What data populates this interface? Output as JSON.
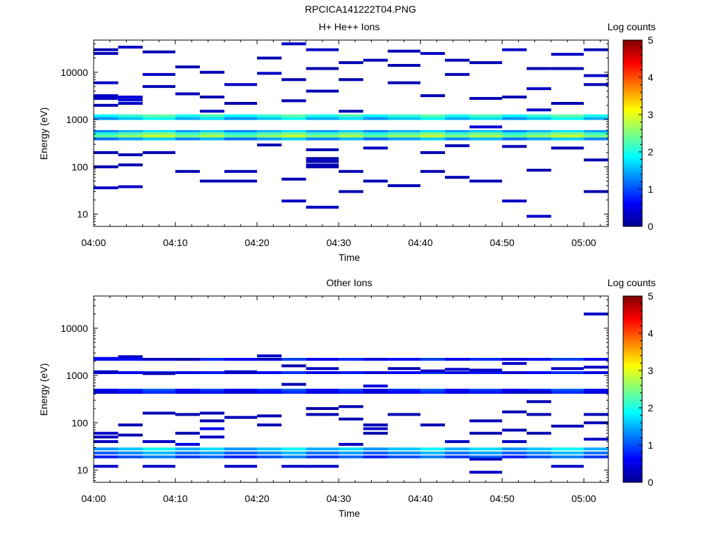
{
  "page_title": "RPCICA141222T04.PNG",
  "colors": {
    "colormap": [
      "#00008f",
      "#0000ff",
      "#00ffff",
      "#ffff00",
      "#ff0000",
      "#800000"
    ]
  },
  "chart_data": [
    {
      "type": "heatmap",
      "title": "H+ He++ Ions",
      "xlabel": "Time",
      "ylabel": "Energy (eV)",
      "colorbar_label": "Log counts",
      "colorbar_ticks": [
        "0",
        "1",
        "2",
        "3",
        "4",
        "5"
      ],
      "clim": [
        0,
        5
      ],
      "x_ticks": [
        "04:00",
        "04:10",
        "04:20",
        "04:30",
        "04:40",
        "04:50",
        "05:00"
      ],
      "y_ticks": [
        "10",
        "100",
        "1000",
        "10000"
      ],
      "y_scale": "log",
      "ylim": [
        5.5,
        48000
      ],
      "xlim": [
        "04:00",
        "05:03"
      ],
      "time_bins": [
        "04:00",
        "04:03",
        "04:06",
        "04:10",
        "04:13",
        "04:16",
        "04:20",
        "04:23",
        "04:26",
        "04:30",
        "04:33",
        "04:36",
        "04:40",
        "04:43",
        "04:46",
        "04:50",
        "04:53",
        "04:56",
        "05:00"
      ],
      "bands": [
        {
          "energy": 1200,
          "level": 2.1
        },
        {
          "energy": 1050,
          "level": 1.6
        },
        {
          "energy": 560,
          "level": 1.5
        },
        {
          "energy": 500,
          "level": 2.3
        },
        {
          "energy": 440,
          "level": 2.6
        },
        {
          "energy": 390,
          "level": 1.4
        }
      ],
      "cells": [
        {
          "t": 0,
          "e": 30000,
          "v": 0.2
        },
        {
          "t": 0,
          "e": 25000,
          "v": 0.2
        },
        {
          "t": 0,
          "e": 6000,
          "v": 0.3
        },
        {
          "t": 0,
          "e": 3200,
          "v": 0.3
        },
        {
          "t": 0,
          "e": 2800,
          "v": 0.3
        },
        {
          "t": 0,
          "e": 2000,
          "v": 0.2
        },
        {
          "t": 0,
          "e": 200,
          "v": 0.2
        },
        {
          "t": 0,
          "e": 100,
          "v": 0.2
        },
        {
          "t": 0,
          "e": 36,
          "v": 0.3
        },
        {
          "t": 1,
          "e": 34000,
          "v": 0.3
        },
        {
          "t": 1,
          "e": 3000,
          "v": 0.4
        },
        {
          "t": 1,
          "e": 2600,
          "v": 0.4
        },
        {
          "t": 1,
          "e": 2200,
          "v": 0.3
        },
        {
          "t": 1,
          "e": 180,
          "v": 0.2
        },
        {
          "t": 1,
          "e": 110,
          "v": 0.2
        },
        {
          "t": 1,
          "e": 38,
          "v": 0.3
        },
        {
          "t": 2,
          "e": 9000,
          "v": 0.3
        },
        {
          "t": 2,
          "e": 27000,
          "v": 0.2
        },
        {
          "t": 2,
          "e": 5000,
          "v": 0.2
        },
        {
          "t": 2,
          "e": 200,
          "v": 0.2
        },
        {
          "t": 3,
          "e": 13000,
          "v": 0.2
        },
        {
          "t": 3,
          "e": 3500,
          "v": 0.2
        },
        {
          "t": 3,
          "e": 80,
          "v": 0.2
        },
        {
          "t": 4,
          "e": 10000,
          "v": 0.2
        },
        {
          "t": 4,
          "e": 3000,
          "v": 0.2
        },
        {
          "t": 4,
          "e": 1500,
          "v": 0.3
        },
        {
          "t": 4,
          "e": 50,
          "v": 0.2
        },
        {
          "t": 5,
          "e": 5500,
          "v": 0.3
        },
        {
          "t": 5,
          "e": 2200,
          "v": 0.2
        },
        {
          "t": 5,
          "e": 80,
          "v": 0.2
        },
        {
          "t": 5,
          "e": 50,
          "v": 0.2
        },
        {
          "t": 6,
          "e": 9500,
          "v": 0.3
        },
        {
          "t": 6,
          "e": 20000,
          "v": 0.2
        },
        {
          "t": 6,
          "e": 290,
          "v": 0.2
        },
        {
          "t": 7,
          "e": 40000,
          "v": 0.3
        },
        {
          "t": 7,
          "e": 7000,
          "v": 0.2
        },
        {
          "t": 7,
          "e": 2500,
          "v": 0.2
        },
        {
          "t": 7,
          "e": 55,
          "v": 0.2
        },
        {
          "t": 7,
          "e": 19,
          "v": 0.3
        },
        {
          "t": 8,
          "e": 30000,
          "v": 0.3
        },
        {
          "t": 8,
          "e": 12000,
          "v": 0.2
        },
        {
          "t": 8,
          "e": 4000,
          "v": 0.2
        },
        {
          "t": 8,
          "e": 230,
          "v": 0.2
        },
        {
          "t": 8,
          "e": 150,
          "v": 0.2
        },
        {
          "t": 8,
          "e": 130,
          "v": 0.2
        },
        {
          "t": 8,
          "e": 110,
          "v": 0.2
        },
        {
          "t": 8,
          "e": 100,
          "v": 0.2
        },
        {
          "t": 8,
          "e": 14,
          "v": 0.3
        },
        {
          "t": 9,
          "e": 16000,
          "v": 0.2
        },
        {
          "t": 9,
          "e": 7000,
          "v": 0.2
        },
        {
          "t": 9,
          "e": 1500,
          "v": 0.2
        },
        {
          "t": 9,
          "e": 80,
          "v": 0.2
        },
        {
          "t": 9,
          "e": 30,
          "v": 0.2
        },
        {
          "t": 10,
          "e": 18000,
          "v": 0.2
        },
        {
          "t": 10,
          "e": 250,
          "v": 0.3
        },
        {
          "t": 10,
          "e": 50,
          "v": 0.2
        },
        {
          "t": 11,
          "e": 28000,
          "v": 0.2
        },
        {
          "t": 11,
          "e": 14000,
          "v": 0.2
        },
        {
          "t": 11,
          "e": 6000,
          "v": 0.2
        },
        {
          "t": 11,
          "e": 40,
          "v": 0.2
        },
        {
          "t": 12,
          "e": 25000,
          "v": 0.3
        },
        {
          "t": 12,
          "e": 3200,
          "v": 0.2
        },
        {
          "t": 12,
          "e": 200,
          "v": 0.2
        },
        {
          "t": 12,
          "e": 80,
          "v": 0.2
        },
        {
          "t": 13,
          "e": 18000,
          "v": 0.2
        },
        {
          "t": 13,
          "e": 9000,
          "v": 0.2
        },
        {
          "t": 13,
          "e": 280,
          "v": 0.2
        },
        {
          "t": 13,
          "e": 60,
          "v": 0.2
        },
        {
          "t": 14,
          "e": 16000,
          "v": 0.2
        },
        {
          "t": 14,
          "e": 2800,
          "v": 0.2
        },
        {
          "t": 14,
          "e": 700,
          "v": 0.4
        },
        {
          "t": 14,
          "e": 50,
          "v": 0.2
        },
        {
          "t": 15,
          "e": 30000,
          "v": 0.3
        },
        {
          "t": 15,
          "e": 3000,
          "v": 0.2
        },
        {
          "t": 15,
          "e": 270,
          "v": 0.2
        },
        {
          "t": 15,
          "e": 19,
          "v": 0.3
        },
        {
          "t": 16,
          "e": 12000,
          "v": 0.2
        },
        {
          "t": 16,
          "e": 4500,
          "v": 0.3
        },
        {
          "t": 16,
          "e": 1600,
          "v": 0.3
        },
        {
          "t": 16,
          "e": 85,
          "v": 0.2
        },
        {
          "t": 16,
          "e": 9,
          "v": 0.3
        },
        {
          "t": 17,
          "e": 24000,
          "v": 0.3
        },
        {
          "t": 17,
          "e": 12000,
          "v": 0.2
        },
        {
          "t": 17,
          "e": 2200,
          "v": 0.2
        },
        {
          "t": 17,
          "e": 250,
          "v": 0.2
        },
        {
          "t": 18,
          "e": 30000,
          "v": 0.2
        },
        {
          "t": 18,
          "e": 8500,
          "v": 0.3
        },
        {
          "t": 18,
          "e": 5500,
          "v": 0.2
        },
        {
          "t": 18,
          "e": 140,
          "v": 0.2
        },
        {
          "t": 18,
          "e": 30,
          "v": 0.2
        }
      ]
    },
    {
      "type": "heatmap",
      "title": "Other Ions",
      "xlabel": "Time",
      "ylabel": "Energy (eV)",
      "colorbar_label": "Log counts",
      "colorbar_ticks": [
        "0",
        "1",
        "2",
        "3",
        "4",
        "5"
      ],
      "clim": [
        0,
        5
      ],
      "x_ticks": [
        "04:00",
        "04:10",
        "04:20",
        "04:30",
        "04:40",
        "04:50",
        "05:00"
      ],
      "y_ticks": [
        "10",
        "100",
        "1000",
        "10000"
      ],
      "y_scale": "log",
      "ylim": [
        5.5,
        48000
      ],
      "xlim": [
        "04:00",
        "05:03"
      ],
      "time_bins": [
        "04:00",
        "04:03",
        "04:06",
        "04:10",
        "04:13",
        "04:16",
        "04:20",
        "04:23",
        "04:26",
        "04:30",
        "04:33",
        "04:36",
        "04:40",
        "04:43",
        "04:46",
        "04:50",
        "04:53",
        "04:56",
        "05:00"
      ],
      "bands": [
        {
          "energy": 2200,
          "level": 0.7
        },
        {
          "energy": 1150,
          "level": 0.6
        },
        {
          "energy": 490,
          "level": 0.8
        },
        {
          "energy": 440,
          "level": 0.6
        },
        {
          "energy": 28,
          "level": 1.6
        },
        {
          "energy": 23,
          "level": 1.3
        },
        {
          "energy": 19,
          "level": 1.0
        }
      ],
      "cells": [
        {
          "t": 0,
          "e": 2300,
          "v": 0.6
        },
        {
          "t": 0,
          "e": 1200,
          "v": 0.3
        },
        {
          "t": 0,
          "e": 60,
          "v": 0.3
        },
        {
          "t": 0,
          "e": 50,
          "v": 0.3
        },
        {
          "t": 0,
          "e": 40,
          "v": 0.3
        },
        {
          "t": 0,
          "e": 12,
          "v": 0.3
        },
        {
          "t": 1,
          "e": 2500,
          "v": 0.3
        },
        {
          "t": 1,
          "e": 90,
          "v": 0.2
        },
        {
          "t": 1,
          "e": 55,
          "v": 0.2
        },
        {
          "t": 2,
          "e": 2200,
          "v": 0.3
        },
        {
          "t": 2,
          "e": 1100,
          "v": 0.2
        },
        {
          "t": 2,
          "e": 160,
          "v": 0.2
        },
        {
          "t": 2,
          "e": 40,
          "v": 0.3
        },
        {
          "t": 2,
          "e": 12,
          "v": 0.3
        },
        {
          "t": 3,
          "e": 2200,
          "v": 0.2
        },
        {
          "t": 3,
          "e": 150,
          "v": 0.2
        },
        {
          "t": 3,
          "e": 60,
          "v": 0.2
        },
        {
          "t": 3,
          "e": 35,
          "v": 0.5
        },
        {
          "t": 4,
          "e": 160,
          "v": 0.2
        },
        {
          "t": 4,
          "e": 110,
          "v": 0.2
        },
        {
          "t": 4,
          "e": 75,
          "v": 0.6
        },
        {
          "t": 4,
          "e": 50,
          "v": 0.3
        },
        {
          "t": 5,
          "e": 2200,
          "v": 0.6
        },
        {
          "t": 5,
          "e": 1200,
          "v": 0.3
        },
        {
          "t": 5,
          "e": 130,
          "v": 0.2
        },
        {
          "t": 5,
          "e": 12,
          "v": 0.3
        },
        {
          "t": 6,
          "e": 2600,
          "v": 0.3
        },
        {
          "t": 6,
          "e": 2200,
          "v": 0.3
        },
        {
          "t": 6,
          "e": 140,
          "v": 0.2
        },
        {
          "t": 6,
          "e": 90,
          "v": 0.2
        },
        {
          "t": 7,
          "e": 1600,
          "v": 0.2
        },
        {
          "t": 7,
          "e": 650,
          "v": 0.2
        },
        {
          "t": 7,
          "e": 12,
          "v": 0.3
        },
        {
          "t": 8,
          "e": 1400,
          "v": 0.3
        },
        {
          "t": 8,
          "e": 200,
          "v": 0.2
        },
        {
          "t": 8,
          "e": 150,
          "v": 0.2
        },
        {
          "t": 8,
          "e": 12,
          "v": 0.3
        },
        {
          "t": 9,
          "e": 220,
          "v": 0.2
        },
        {
          "t": 9,
          "e": 120,
          "v": 0.2
        },
        {
          "t": 9,
          "e": 35,
          "v": 0.3
        },
        {
          "t": 10,
          "e": 600,
          "v": 0.4
        },
        {
          "t": 10,
          "e": 90,
          "v": 0.2
        },
        {
          "t": 10,
          "e": 75,
          "v": 0.3
        },
        {
          "t": 10,
          "e": 60,
          "v": 0.2
        },
        {
          "t": 11,
          "e": 1400,
          "v": 0.2
        },
        {
          "t": 11,
          "e": 150,
          "v": 0.2
        },
        {
          "t": 12,
          "e": 1250,
          "v": 0.3
        },
        {
          "t": 12,
          "e": 90,
          "v": 0.2
        },
        {
          "t": 13,
          "e": 1350,
          "v": 0.3
        },
        {
          "t": 13,
          "e": 40,
          "v": 0.3
        },
        {
          "t": 14,
          "e": 1300,
          "v": 0.3
        },
        {
          "t": 14,
          "e": 110,
          "v": 0.2
        },
        {
          "t": 14,
          "e": 60,
          "v": 0.2
        },
        {
          "t": 14,
          "e": 17,
          "v": 0.3
        },
        {
          "t": 14,
          "e": 9,
          "v": 0.3
        },
        {
          "t": 15,
          "e": 1800,
          "v": 0.3
        },
        {
          "t": 15,
          "e": 170,
          "v": 0.2
        },
        {
          "t": 15,
          "e": 70,
          "v": 0.2
        },
        {
          "t": 15,
          "e": 40,
          "v": 0.3
        },
        {
          "t": 16,
          "e": 450,
          "v": 0.3
        },
        {
          "t": 16,
          "e": 280,
          "v": 0.2
        },
        {
          "t": 16,
          "e": 150,
          "v": 0.2
        },
        {
          "t": 16,
          "e": 60,
          "v": 0.2
        },
        {
          "t": 17,
          "e": 1400,
          "v": 0.3
        },
        {
          "t": 17,
          "e": 85,
          "v": 0.2
        },
        {
          "t": 17,
          "e": 12,
          "v": 0.3
        },
        {
          "t": 18,
          "e": 20000,
          "v": 0.3
        },
        {
          "t": 18,
          "e": 1500,
          "v": 0.3
        },
        {
          "t": 18,
          "e": 150,
          "v": 0.2
        },
        {
          "t": 18,
          "e": 100,
          "v": 0.2
        },
        {
          "t": 18,
          "e": 45,
          "v": 0.3
        }
      ]
    }
  ]
}
